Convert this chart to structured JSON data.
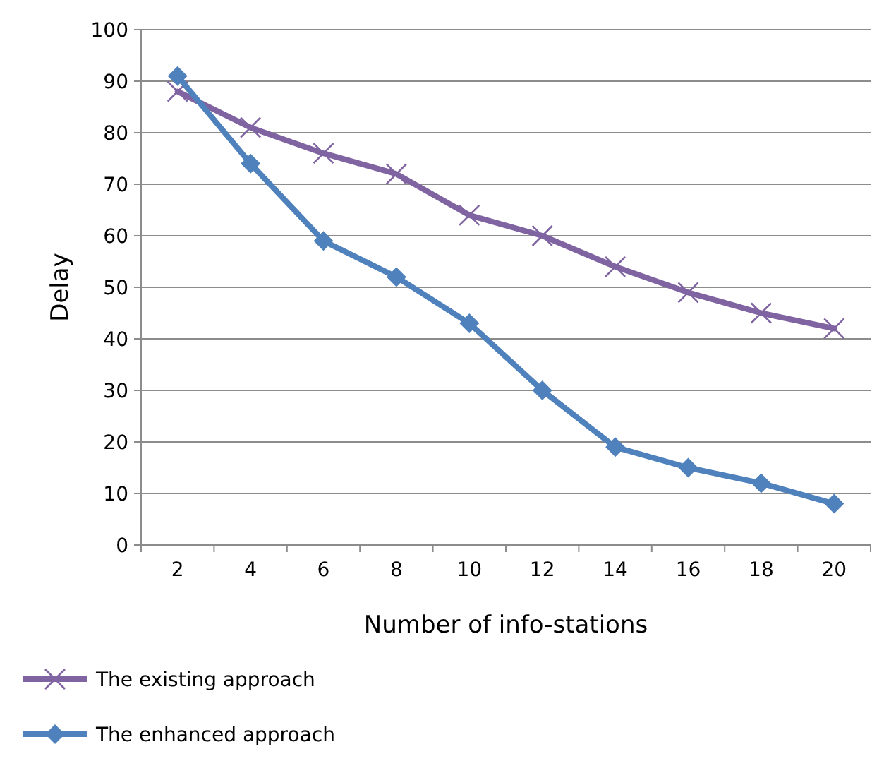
{
  "chart_data": {
    "type": "line",
    "xlabel": "Number of info-stations",
    "ylabel": "Delay",
    "categories": [
      "2",
      "4",
      "6",
      "8",
      "10",
      "12",
      "14",
      "16",
      "18",
      "20"
    ],
    "series": [
      {
        "name": "The existing approach",
        "color": "#8064a2",
        "marker": "cross",
        "values": [
          88,
          81,
          76,
          72,
          64,
          60,
          54,
          49,
          45,
          42
        ]
      },
      {
        "name": "The enhanced approach",
        "color": "#4f81bd",
        "marker": "diamond",
        "values": [
          91,
          74,
          59,
          52,
          43,
          30,
          19,
          15,
          12,
          8
        ]
      }
    ],
    "ylim": [
      0,
      100
    ],
    "yticks": [
      0,
      10,
      20,
      30,
      40,
      50,
      60,
      70,
      80,
      90,
      100
    ],
    "grid": "y",
    "legend": "bottom"
  }
}
